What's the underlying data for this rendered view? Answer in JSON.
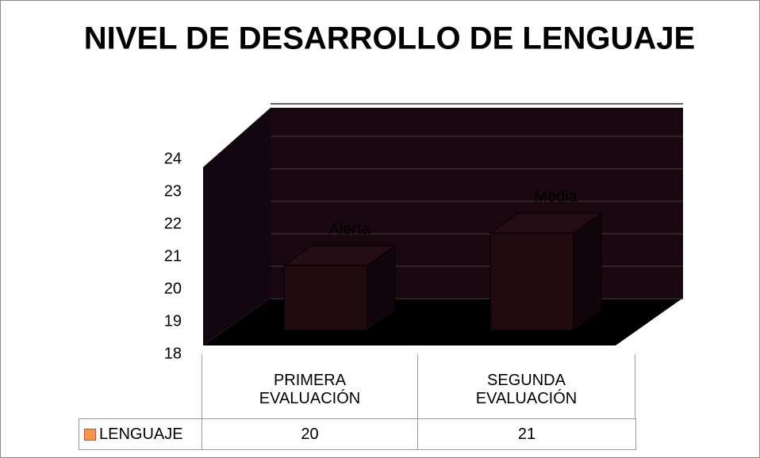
{
  "chart_data": {
    "type": "bar3d",
    "title": "NIVEL DE DESARROLLO DE LENGUAJE",
    "categories": [
      "PRIMERA EVALUACIÓN",
      "SEGUNDA EVALUACIÓN"
    ],
    "series": [
      {
        "name": "LENGUAJE",
        "color": "#f79646",
        "values": [
          20,
          21
        ],
        "labels": [
          "Alerta",
          "Media"
        ]
      }
    ],
    "ylim": [
      18,
      24
    ],
    "yticks": [
      18,
      19,
      20,
      21,
      22,
      23,
      24
    ],
    "grid": true,
    "data_table": true
  }
}
